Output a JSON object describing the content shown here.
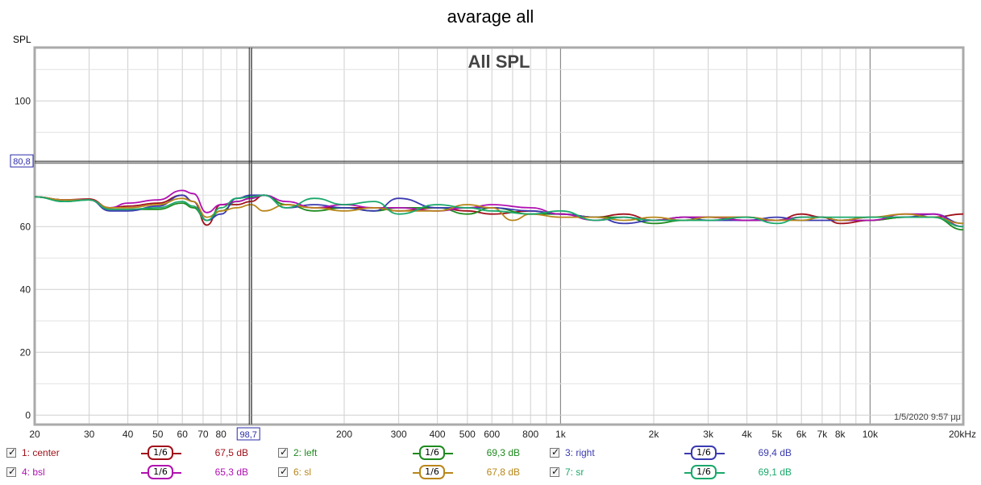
{
  "window_title": "avarage all",
  "chart_data": {
    "type": "line",
    "title": "All SPL",
    "ylabel": "SPL",
    "xscale": "log",
    "xlim": [
      20,
      20000
    ],
    "ylim": [
      -3,
      117
    ],
    "yticks": [
      0,
      20,
      40,
      60,
      80,
      100
    ],
    "ytick_labels": [
      "0",
      "20",
      "40",
      "60",
      "80",
      "100"
    ],
    "xticks": [
      20,
      30,
      40,
      50,
      60,
      70,
      80,
      200,
      300,
      400,
      500,
      600,
      800,
      1000,
      2000,
      3000,
      4000,
      5000,
      6000,
      7000,
      8000,
      10000,
      20000
    ],
    "xtick_labels": [
      "20",
      "30",
      "40",
      "50",
      "60",
      "70",
      "80",
      "200",
      "300",
      "400",
      "500",
      "600",
      "800",
      "1k",
      "2k",
      "3k",
      "4k",
      "5k",
      "6k",
      "7k",
      "8k",
      "10k",
      "20kHz"
    ],
    "cursor": {
      "x": 98.7,
      "x_label": "98,7",
      "y": 80.8,
      "y_label": "80,8"
    },
    "timestamp": "1/5/2020 9:57 μμ",
    "grid": true,
    "series": [
      {
        "name": "1: center",
        "color": "#a0101a",
        "smoothing": "1/6",
        "level": "67,5 dB",
        "points": [
          [
            20,
            69.5
          ],
          [
            25,
            68.5
          ],
          [
            30,
            68.8
          ],
          [
            35,
            66
          ],
          [
            40,
            66.5
          ],
          [
            50,
            67.5
          ],
          [
            60,
            70
          ],
          [
            65,
            68
          ],
          [
            72,
            60.5
          ],
          [
            80,
            67
          ],
          [
            90,
            67
          ],
          [
            100,
            68
          ],
          [
            110,
            70
          ],
          [
            130,
            67
          ],
          [
            160,
            66
          ],
          [
            200,
            66
          ],
          [
            250,
            66
          ],
          [
            300,
            65
          ],
          [
            400,
            66
          ],
          [
            500,
            65
          ],
          [
            600,
            64
          ],
          [
            800,
            65
          ],
          [
            1000,
            64
          ],
          [
            1300,
            63
          ],
          [
            1600,
            64
          ],
          [
            2000,
            62
          ],
          [
            2500,
            63
          ],
          [
            3000,
            63
          ],
          [
            4000,
            63
          ],
          [
            5000,
            62
          ],
          [
            6000,
            64
          ],
          [
            7000,
            63
          ],
          [
            8000,
            61
          ],
          [
            10000,
            62
          ],
          [
            13000,
            63
          ],
          [
            16000,
            63
          ],
          [
            20000,
            64
          ]
        ]
      },
      {
        "name": "2: left",
        "color": "#1e8a1e",
        "smoothing": "1/6",
        "level": "69,3 dB",
        "points": [
          [
            20,
            69.5
          ],
          [
            25,
            68
          ],
          [
            30,
            68.5
          ],
          [
            35,
            65.5
          ],
          [
            40,
            65.5
          ],
          [
            50,
            65.5
          ],
          [
            60,
            67.5
          ],
          [
            65,
            66
          ],
          [
            72,
            62
          ],
          [
            80,
            65
          ],
          [
            90,
            68
          ],
          [
            100,
            69
          ],
          [
            110,
            70
          ],
          [
            130,
            67
          ],
          [
            160,
            65
          ],
          [
            200,
            66
          ],
          [
            250,
            65
          ],
          [
            300,
            66
          ],
          [
            400,
            66
          ],
          [
            500,
            64
          ],
          [
            600,
            66
          ],
          [
            800,
            64
          ],
          [
            1000,
            64
          ],
          [
            1300,
            63
          ],
          [
            1600,
            63
          ],
          [
            2000,
            61
          ],
          [
            2500,
            62
          ],
          [
            3000,
            63
          ],
          [
            4000,
            62
          ],
          [
            5000,
            62
          ],
          [
            6000,
            63
          ],
          [
            7000,
            63
          ],
          [
            8000,
            62
          ],
          [
            10000,
            62
          ],
          [
            13000,
            63
          ],
          [
            16000,
            63
          ],
          [
            20000,
            59
          ]
        ]
      },
      {
        "name": "3: right",
        "color": "#3a3ab0",
        "smoothing": "1/6",
        "level": "69,4 dB",
        "points": [
          [
            20,
            69.5
          ],
          [
            25,
            68.5
          ],
          [
            30,
            68.5
          ],
          [
            35,
            65
          ],
          [
            40,
            65
          ],
          [
            50,
            66.5
          ],
          [
            60,
            70
          ],
          [
            65,
            68
          ],
          [
            72,
            62
          ],
          [
            80,
            64
          ],
          [
            90,
            69
          ],
          [
            100,
            70
          ],
          [
            110,
            70
          ],
          [
            130,
            66
          ],
          [
            160,
            67
          ],
          [
            200,
            66
          ],
          [
            250,
            65
          ],
          [
            300,
            69
          ],
          [
            400,
            66
          ],
          [
            500,
            66
          ],
          [
            600,
            66
          ],
          [
            800,
            65
          ],
          [
            1000,
            64
          ],
          [
            1300,
            63
          ],
          [
            1600,
            61
          ],
          [
            2000,
            62
          ],
          [
            2500,
            63
          ],
          [
            3000,
            62
          ],
          [
            4000,
            62
          ],
          [
            5000,
            63
          ],
          [
            6000,
            62
          ],
          [
            7000,
            62
          ],
          [
            8000,
            62
          ],
          [
            10000,
            63
          ],
          [
            13000,
            63
          ],
          [
            16000,
            64
          ],
          [
            20000,
            61
          ]
        ]
      },
      {
        "name": "4: bsl",
        "color": "#b010b0",
        "smoothing": "1/6",
        "level": "65,3 dB",
        "points": [
          [
            20,
            69.5
          ],
          [
            25,
            68.5
          ],
          [
            30,
            68.5
          ],
          [
            35,
            66
          ],
          [
            40,
            67.5
          ],
          [
            50,
            68.5
          ],
          [
            60,
            71.5
          ],
          [
            65,
            70.5
          ],
          [
            72,
            64.5
          ],
          [
            80,
            67
          ],
          [
            90,
            68
          ],
          [
            100,
            69
          ],
          [
            110,
            70
          ],
          [
            130,
            68
          ],
          [
            160,
            66
          ],
          [
            200,
            67
          ],
          [
            250,
            66
          ],
          [
            300,
            66
          ],
          [
            400,
            65
          ],
          [
            500,
            66
          ],
          [
            600,
            67
          ],
          [
            800,
            66
          ],
          [
            1000,
            64
          ],
          [
            1300,
            62
          ],
          [
            1600,
            63
          ],
          [
            2000,
            62
          ],
          [
            2500,
            63
          ],
          [
            3000,
            63
          ],
          [
            4000,
            62
          ],
          [
            5000,
            62
          ],
          [
            6000,
            63
          ],
          [
            7000,
            63
          ],
          [
            8000,
            62
          ],
          [
            10000,
            62
          ],
          [
            13000,
            64
          ],
          [
            16000,
            64
          ],
          [
            20000,
            60
          ]
        ]
      },
      {
        "name": "6: sl",
        "color": "#b8861a",
        "smoothing": "1/6",
        "level": "67,8 dB",
        "points": [
          [
            20,
            69.5
          ],
          [
            25,
            68.5
          ],
          [
            30,
            68.5
          ],
          [
            35,
            66
          ],
          [
            40,
            66
          ],
          [
            50,
            67
          ],
          [
            60,
            69
          ],
          [
            65,
            68
          ],
          [
            72,
            63
          ],
          [
            80,
            65
          ],
          [
            90,
            66
          ],
          [
            100,
            67
          ],
          [
            110,
            65
          ],
          [
            130,
            67
          ],
          [
            160,
            66
          ],
          [
            200,
            65
          ],
          [
            250,
            66
          ],
          [
            300,
            65
          ],
          [
            400,
            65
          ],
          [
            500,
            67
          ],
          [
            600,
            66
          ],
          [
            700,
            62
          ],
          [
            800,
            64
          ],
          [
            1000,
            63
          ],
          [
            1300,
            63
          ],
          [
            1600,
            62
          ],
          [
            2000,
            63
          ],
          [
            2500,
            62
          ],
          [
            3000,
            63
          ],
          [
            4000,
            63
          ],
          [
            5000,
            62
          ],
          [
            6000,
            62
          ],
          [
            7000,
            63
          ],
          [
            8000,
            62
          ],
          [
            10000,
            63
          ],
          [
            13000,
            64
          ],
          [
            16000,
            63
          ],
          [
            20000,
            61
          ]
        ]
      },
      {
        "name": "7: sr",
        "color": "#1aa86a",
        "smoothing": "1/6",
        "level": "69,1 dB",
        "points": [
          [
            20,
            69.5
          ],
          [
            25,
            68
          ],
          [
            30,
            68.5
          ],
          [
            35,
            65.5
          ],
          [
            40,
            65.5
          ],
          [
            50,
            66
          ],
          [
            60,
            68
          ],
          [
            65,
            66.5
          ],
          [
            72,
            62
          ],
          [
            80,
            66
          ],
          [
            90,
            69
          ],
          [
            100,
            69.5
          ],
          [
            110,
            70
          ],
          [
            130,
            66
          ],
          [
            160,
            69
          ],
          [
            200,
            67
          ],
          [
            250,
            68
          ],
          [
            300,
            64
          ],
          [
            400,
            67
          ],
          [
            500,
            66
          ],
          [
            600,
            65
          ],
          [
            800,
            64
          ],
          [
            1000,
            65
          ],
          [
            1300,
            62
          ],
          [
            1600,
            63
          ],
          [
            2000,
            62
          ],
          [
            2500,
            62
          ],
          [
            3000,
            62
          ],
          [
            4000,
            63
          ],
          [
            5000,
            61
          ],
          [
            6000,
            63
          ],
          [
            7000,
            63
          ],
          [
            8000,
            63
          ],
          [
            10000,
            63
          ],
          [
            13000,
            63
          ],
          [
            16000,
            63
          ],
          [
            20000,
            60
          ]
        ]
      }
    ]
  },
  "legend": {
    "rows": [
      [
        {
          "label": "1: center",
          "smoothing": "1/6",
          "level": "67,5 dB",
          "color": "#a0101a"
        },
        {
          "label": "2: left",
          "smoothing": "1/6",
          "level": "69,3 dB",
          "color": "#1e8a1e"
        },
        {
          "label": "3: right",
          "smoothing": "1/6",
          "level": "69,4 dB",
          "color": "#3a3ab0"
        }
      ],
      [
        {
          "label": "4: bsl",
          "smoothing": "1/6",
          "level": "65,3 dB",
          "color": "#b010b0"
        },
        {
          "label": "6: sl",
          "smoothing": "1/6",
          "level": "67,8 dB",
          "color": "#b8861a"
        },
        {
          "label": "7: sr",
          "smoothing": "1/6",
          "level": "69,1 dB",
          "color": "#1aa86a"
        }
      ]
    ]
  }
}
